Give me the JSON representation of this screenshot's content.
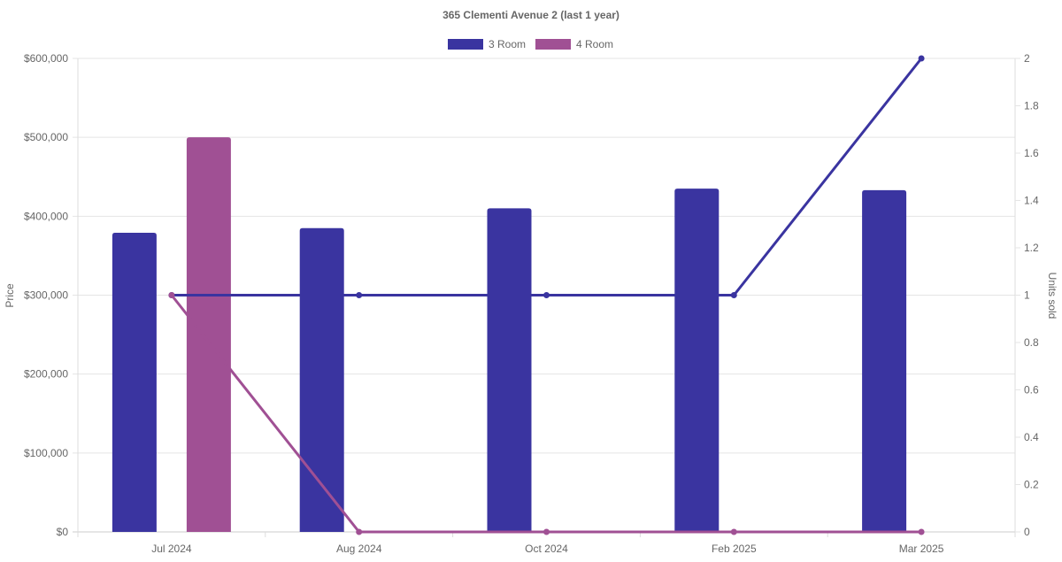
{
  "chart_data": {
    "type": "bar",
    "title": "365 Clementi Avenue 2 (last 1 year)",
    "categories": [
      "Jul 2024",
      "Aug 2024",
      "Oct 2024",
      "Feb 2025",
      "Mar 2025"
    ],
    "ylabel": "Price",
    "y2label": "Units sold",
    "ylim": [
      0,
      600000
    ],
    "y2lim": [
      0,
      2
    ],
    "yticks": [
      "$0",
      "$100,000",
      "$200,000",
      "$300,000",
      "$400,000",
      "$500,000",
      "$600,000"
    ],
    "y2ticks": [
      "0",
      "0.2",
      "0.4",
      "0.6",
      "0.8",
      "1",
      "1.2",
      "1.4",
      "1.6",
      "1.8",
      "2"
    ],
    "grid": true,
    "legend_position": "top",
    "series": [
      {
        "name": "3 Room",
        "color": "#3a34a0",
        "prices": [
          379000,
          385000,
          410000,
          435000,
          433000
        ],
        "units": [
          1,
          1,
          1,
          1,
          2
        ]
      },
      {
        "name": "4 Room",
        "color": "#a05094",
        "prices": [
          500000,
          null,
          null,
          null,
          null
        ],
        "units": [
          1,
          0,
          0,
          0,
          0
        ]
      }
    ]
  }
}
